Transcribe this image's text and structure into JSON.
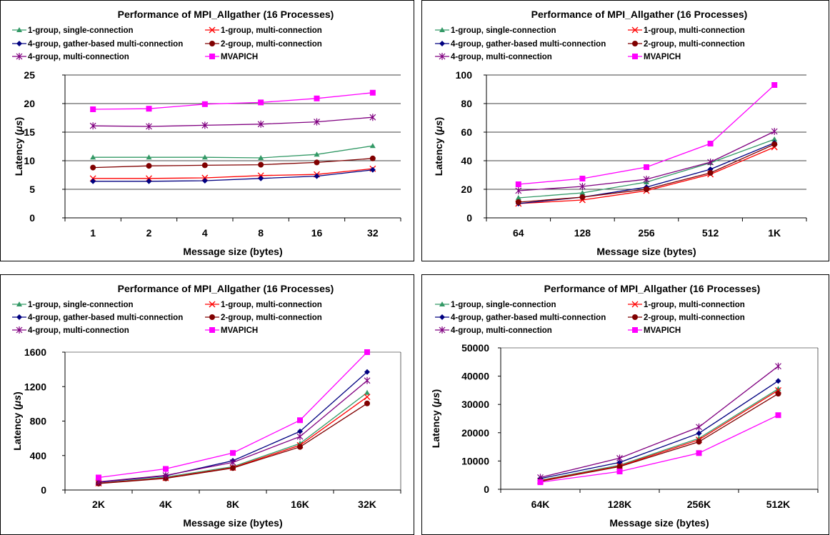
{
  "series_styles": [
    {
      "color": "#339966",
      "marker": "triangle"
    },
    {
      "color": "#ff0000",
      "marker": "x"
    },
    {
      "color": "#000080",
      "marker": "diamond"
    },
    {
      "color": "#800000",
      "marker": "circle"
    },
    {
      "color": "#800080",
      "marker": "star"
    },
    {
      "color": "#ff00ff",
      "marker": "square"
    }
  ],
  "chart_data": [
    {
      "type": "line",
      "title": "Performance of MPI_Allgather (16 Processes)",
      "xlabel": "Message size (bytes)",
      "ylabel_main": "Latency (",
      "ylabel_sym": "μs",
      "ylabel_end": ")",
      "categories": [
        "1",
        "2",
        "4",
        "8",
        "16",
        "32"
      ],
      "ylim": [
        0,
        25
      ],
      "yticks": [
        "0",
        "5",
        "10",
        "15",
        "20",
        "25"
      ],
      "grid": true,
      "legend_position": "top",
      "series": [
        {
          "name": "1-group, single-connection",
          "values": [
            10.6,
            10.6,
            10.6,
            10.5,
            11.1,
            12.6
          ]
        },
        {
          "name": "1-group, multi-connection",
          "values": [
            6.9,
            6.9,
            7.0,
            7.4,
            7.6,
            8.6
          ]
        },
        {
          "name": "4-group, gather-based multi-connection",
          "values": [
            6.4,
            6.4,
            6.5,
            6.9,
            7.3,
            8.4
          ]
        },
        {
          "name": "2-group, multi-connection",
          "values": [
            8.8,
            9.1,
            9.2,
            9.3,
            9.7,
            10.4
          ]
        },
        {
          "name": "4-group, multi-connection",
          "values": [
            16.1,
            16.0,
            16.2,
            16.4,
            16.8,
            17.6
          ]
        },
        {
          "name": "MVAPICH",
          "values": [
            19.0,
            19.1,
            19.9,
            20.2,
            20.9,
            21.9
          ]
        }
      ]
    },
    {
      "type": "line",
      "title": "Performance of MPI_Allgather (16 Processes)",
      "xlabel": "Message size (bytes)",
      "ylabel_main": "Latency (",
      "ylabel_sym": "μs",
      "ylabel_end": ")",
      "categories": [
        "64",
        "128",
        "256",
        "512",
        "1K"
      ],
      "ylim": [
        0,
        100
      ],
      "yticks": [
        "0",
        "20",
        "40",
        "60",
        "80",
        "100"
      ],
      "grid": true,
      "legend_position": "top",
      "series": [
        {
          "name": "1-group, single-connection",
          "values": [
            14,
            17.5,
            25,
            38.5,
            55
          ]
        },
        {
          "name": "1-group, multi-connection",
          "values": [
            10,
            12.5,
            19,
            30.5,
            49.5
          ]
        },
        {
          "name": "4-group, gather-based multi-connection",
          "values": [
            10,
            14.5,
            21.5,
            34,
            52.5
          ]
        },
        {
          "name": "2-group, multi-connection",
          "values": [
            11,
            14.5,
            20,
            31.5,
            51.5
          ]
        },
        {
          "name": "4-group, multi-connection",
          "values": [
            19,
            22,
            27,
            39,
            60.5
          ]
        },
        {
          "name": "MVAPICH",
          "values": [
            23.5,
            27.5,
            35.5,
            52,
            93
          ]
        }
      ]
    },
    {
      "type": "line",
      "title": "Performance of MPI_Allgather (16 Processes)",
      "xlabel": "Message size (bytes)",
      "ylabel_main": "Latency (",
      "ylabel_sym": "μs",
      "ylabel_end": ")",
      "categories": [
        "2K",
        "4K",
        "8K",
        "16K",
        "32K"
      ],
      "ylim": [
        0,
        1600
      ],
      "yticks": [
        "0",
        "400",
        "800",
        "1200",
        "1600"
      ],
      "grid": false,
      "legend_position": "top",
      "series": [
        {
          "name": "1-group, single-connection",
          "values": [
            80,
            150,
            270,
            540,
            1130
          ]
        },
        {
          "name": "1-group, multi-connection",
          "values": [
            78,
            140,
            260,
            520,
            1080
          ]
        },
        {
          "name": "4-group, gather-based multi-connection",
          "values": [
            90,
            165,
            340,
            680,
            1370
          ]
        },
        {
          "name": "2-group, multi-connection",
          "values": [
            75,
            135,
            255,
            500,
            1005
          ]
        },
        {
          "name": "4-group, multi-connection",
          "values": [
            95,
            170,
            320,
            620,
            1270
          ]
        },
        {
          "name": "MVAPICH",
          "values": [
            145,
            245,
            430,
            810,
            1600
          ]
        }
      ]
    },
    {
      "type": "line",
      "title": "Performance of MPI_Allgather (16 Processes)",
      "xlabel": "Message size (bytes)",
      "ylabel_main": "Latency (",
      "ylabel_sym": "μs",
      "ylabel_end": ")",
      "categories": [
        "64K",
        "128K",
        "256K",
        "512K"
      ],
      "ylim": [
        0,
        50000
      ],
      "yticks": [
        "0",
        "10000",
        "20000",
        "30000",
        "40000",
        "50000"
      ],
      "grid": false,
      "legend_position": "top",
      "series": [
        {
          "name": "1-group, single-connection",
          "values": [
            3200,
            8500,
            18000,
            35500
          ]
        },
        {
          "name": "1-group, multi-connection",
          "values": [
            3000,
            8200,
            17500,
            35000
          ]
        },
        {
          "name": "4-group, gather-based multi-connection",
          "values": [
            3800,
            9500,
            19800,
            38300
          ]
        },
        {
          "name": "2-group, multi-connection",
          "values": [
            2800,
            8000,
            16800,
            33800
          ]
        },
        {
          "name": "4-group, multi-connection",
          "values": [
            4200,
            11000,
            22000,
            43500
          ]
        },
        {
          "name": "MVAPICH",
          "values": [
            2500,
            6300,
            12800,
            26200
          ]
        }
      ]
    }
  ]
}
